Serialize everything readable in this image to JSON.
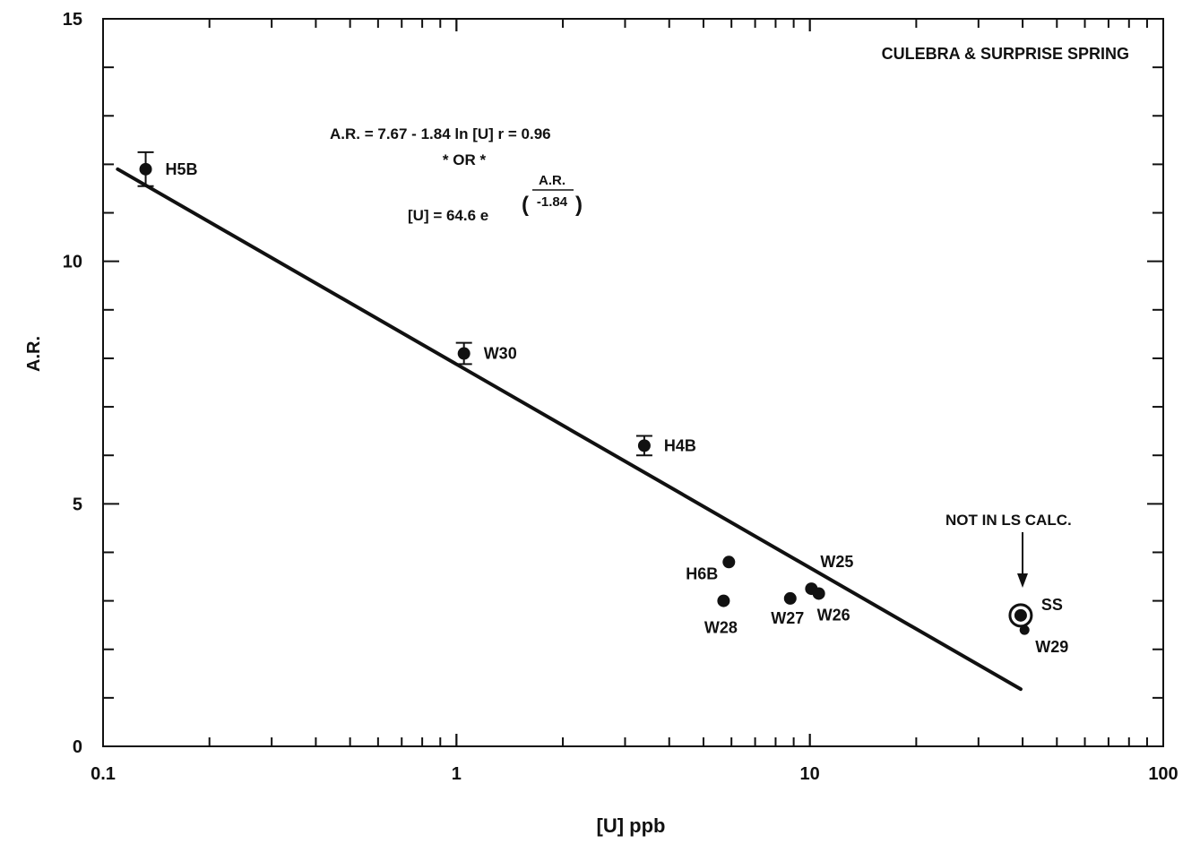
{
  "chart_data": {
    "type": "scatter",
    "title": "CULEBRA & SURPRISE SPRING",
    "xlabel": "[U] ppb",
    "ylabel": "A.R.",
    "x_scale": "log",
    "xlim": [
      0.1,
      100
    ],
    "ylim": [
      0,
      15
    ],
    "x_tick_labels": [
      "0.1",
      "1",
      "10",
      "100"
    ],
    "y_tick_labels": [
      "0",
      "5",
      "10",
      "15"
    ],
    "grid": false,
    "points": [
      {
        "label": "H5B",
        "x": 0.132,
        "y": 11.9,
        "err": 0.35
      },
      {
        "label": "W30",
        "x": 1.05,
        "y": 8.1,
        "err": 0.22
      },
      {
        "label": "H4B",
        "x": 3.4,
        "y": 6.2,
        "err": 0.2
      },
      {
        "label": "H6B",
        "x": 5.9,
        "y": 3.8
      },
      {
        "label": "W28",
        "x": 5.7,
        "y": 3.0
      },
      {
        "label": "W27",
        "x": 8.8,
        "y": 3.05
      },
      {
        "label": "W25",
        "x": 10.1,
        "y": 3.25
      },
      {
        "label": "W26",
        "x": 10.6,
        "y": 3.15
      },
      {
        "label": "SS",
        "x": 39.5,
        "y": 2.7,
        "circled": true
      },
      {
        "label": "W29",
        "x": 40.5,
        "y": 2.4
      }
    ],
    "fit_line": {
      "x": [
        0.11,
        39.5
      ],
      "y": [
        11.9,
        1.18
      ]
    },
    "annotations": {
      "equation_line1": "A.R. = 7.67 - 1.84 ln [U]    r = 0.96",
      "or_text": "* OR *",
      "equation_line2_prefix": "[U] = 64.6 e",
      "equation_exp_numerator": "A.R.",
      "equation_exp_denominator": "-1.84",
      "note": "NOT IN LS CALC."
    }
  }
}
